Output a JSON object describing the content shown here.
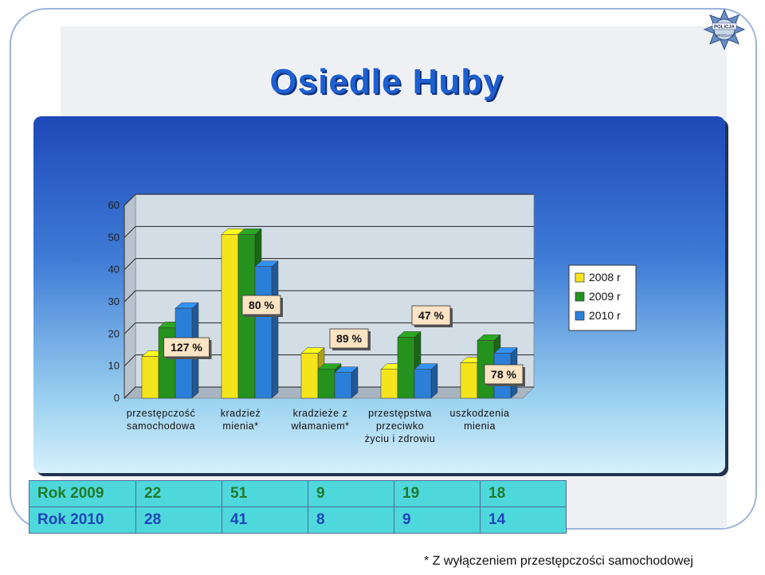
{
  "page": {
    "title": "Osiedle Huby",
    "badge_text": "POLICJA",
    "badge_subtext": "WROCŁAW",
    "footnote": "* Z wyłączeniem przestępczości samochodowej"
  },
  "colors": {
    "y2008": "#f4e41c",
    "y2009": "#25921e",
    "y2010": "#2c7fd8",
    "title": "#1f5fcf"
  },
  "chart_data": {
    "type": "bar",
    "title": "",
    "xlabel": "",
    "ylabel": "",
    "ylim": [
      0,
      60
    ],
    "yticks": [
      "0",
      "10",
      "20",
      "30",
      "40",
      "50",
      "60"
    ],
    "categories": [
      [
        "przestępczość",
        "samochodowa"
      ],
      [
        "kradzież",
        "mienia*"
      ],
      [
        "kradzieże z",
        "włamaniem*"
      ],
      [
        "przestępstwa",
        "przeciwko",
        "życiu i zdrowiu"
      ],
      [
        "uszkodzenia",
        "mienia"
      ]
    ],
    "series": [
      {
        "name": "2008 r",
        "values": [
          13,
          51,
          14,
          9,
          11
        ]
      },
      {
        "name": "2009 r",
        "values": [
          22,
          51,
          9,
          19,
          18
        ]
      },
      {
        "name": "2010 r",
        "values": [
          28,
          41,
          8,
          9,
          14
        ]
      }
    ],
    "annotations": [
      "127 %",
      "80 %",
      "89 %",
      "47 %",
      "78 %"
    ],
    "legend_position": "right",
    "grid": true
  },
  "table": {
    "rows": [
      {
        "label": "Rok 2009",
        "values": [
          "22",
          "51",
          "9",
          "19",
          "18"
        ]
      },
      {
        "label": "Rok 2010",
        "values": [
          "28",
          "41",
          "8",
          "9",
          "14"
        ]
      }
    ]
  }
}
